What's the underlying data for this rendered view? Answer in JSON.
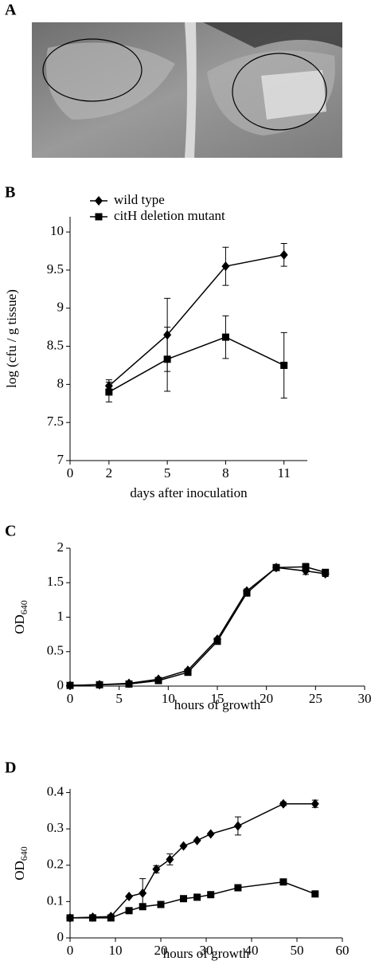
{
  "panel_a": {
    "label": "A"
  },
  "chart_data": [
    {
      "type": "line",
      "panel_label": "B",
      "x_label": "days  after  inoculation",
      "y_label": "log (cfu / g tissue)",
      "xlim": [
        0,
        12.2
      ],
      "xticks": [
        0,
        2,
        5,
        8,
        11
      ],
      "ylim": [
        7,
        10.2
      ],
      "yticks": [
        7,
        7.5,
        8,
        8.5,
        9,
        9.5,
        10
      ],
      "legend": "upper left",
      "series": [
        {
          "name": "wild type",
          "color": "#000000",
          "marker": "diamond",
          "x": [
            2,
            5,
            8,
            11
          ],
          "values": [
            7.98,
            8.65,
            9.55,
            9.7
          ],
          "errors": [
            0.08,
            0.48,
            0.25,
            0.15
          ]
        },
        {
          "name": "citH deletion mutant",
          "color": "#000000",
          "marker": "square",
          "x": [
            2,
            5,
            8,
            11
          ],
          "values": [
            7.9,
            8.33,
            8.62,
            8.25
          ],
          "errors": [
            0.13,
            0.42,
            0.28,
            0.43
          ]
        }
      ]
    },
    {
      "type": "line",
      "panel_label": "C",
      "x_label": "hours of growth",
      "y_label": "OD",
      "y_label_sub": "640",
      "xlim": [
        0,
        30
      ],
      "xticks": [
        0,
        5,
        10,
        15,
        20,
        25,
        30
      ],
      "ylim": [
        0,
        2
      ],
      "yticks": [
        0,
        0.5,
        1,
        1.5,
        2
      ],
      "series": [
        {
          "name": "wild type",
          "color": "#000000",
          "marker": "diamond",
          "x": [
            0,
            3,
            6,
            9,
            12,
            15,
            18,
            21,
            24,
            26
          ],
          "values": [
            0.01,
            0.02,
            0.04,
            0.1,
            0.23,
            0.68,
            1.38,
            1.72,
            1.67,
            1.63
          ],
          "errors": [
            0,
            0,
            0,
            0,
            0,
            0,
            0.03,
            0.02,
            0.05,
            0.04
          ]
        },
        {
          "name": "citH deletion mutant",
          "color": "#000000",
          "marker": "square",
          "x": [
            0,
            3,
            6,
            9,
            12,
            15,
            18,
            21,
            24,
            26
          ],
          "values": [
            0.01,
            0.02,
            0.03,
            0.08,
            0.2,
            0.65,
            1.35,
            1.72,
            1.73,
            1.65
          ],
          "errors": [
            0,
            0,
            0,
            0,
            0,
            0,
            0.03,
            0.02,
            0.05,
            0.04
          ]
        }
      ]
    },
    {
      "type": "line",
      "panel_label": "D",
      "x_label": "hours of growth",
      "y_label": "OD",
      "y_label_sub": "640",
      "xlim": [
        0,
        60
      ],
      "xticks": [
        0,
        10,
        20,
        30,
        40,
        50,
        60
      ],
      "ylim": [
        0,
        0.41
      ],
      "yticks": [
        0,
        0.1,
        0.2,
        0.3,
        0.4
      ],
      "series": [
        {
          "name": "wild type",
          "color": "#000000",
          "marker": "diamond",
          "x": [
            0,
            5,
            9,
            13,
            16,
            19,
            22,
            25,
            28,
            31,
            37,
            47,
            54
          ],
          "values": [
            0.055,
            0.057,
            0.059,
            0.114,
            0.123,
            0.189,
            0.216,
            0.253,
            0.268,
            0.286,
            0.308,
            0.369,
            0.369
          ],
          "errors": [
            0,
            0,
            0,
            0,
            0.04,
            0.01,
            0.015,
            0,
            0,
            0,
            0.025,
            0.005,
            0.01
          ]
        },
        {
          "name": "citH deletion mutant",
          "color": "#000000",
          "marker": "square",
          "x": [
            0,
            5,
            9,
            13,
            16,
            20,
            25,
            28,
            31,
            37,
            47,
            54
          ],
          "values": [
            0.055,
            0.055,
            0.055,
            0.075,
            0.086,
            0.092,
            0.108,
            0.112,
            0.119,
            0.138,
            0.154,
            0.121
          ],
          "errors": [
            0,
            0,
            0,
            0,
            0,
            0,
            0,
            0,
            0,
            0,
            0,
            0
          ]
        }
      ]
    }
  ]
}
